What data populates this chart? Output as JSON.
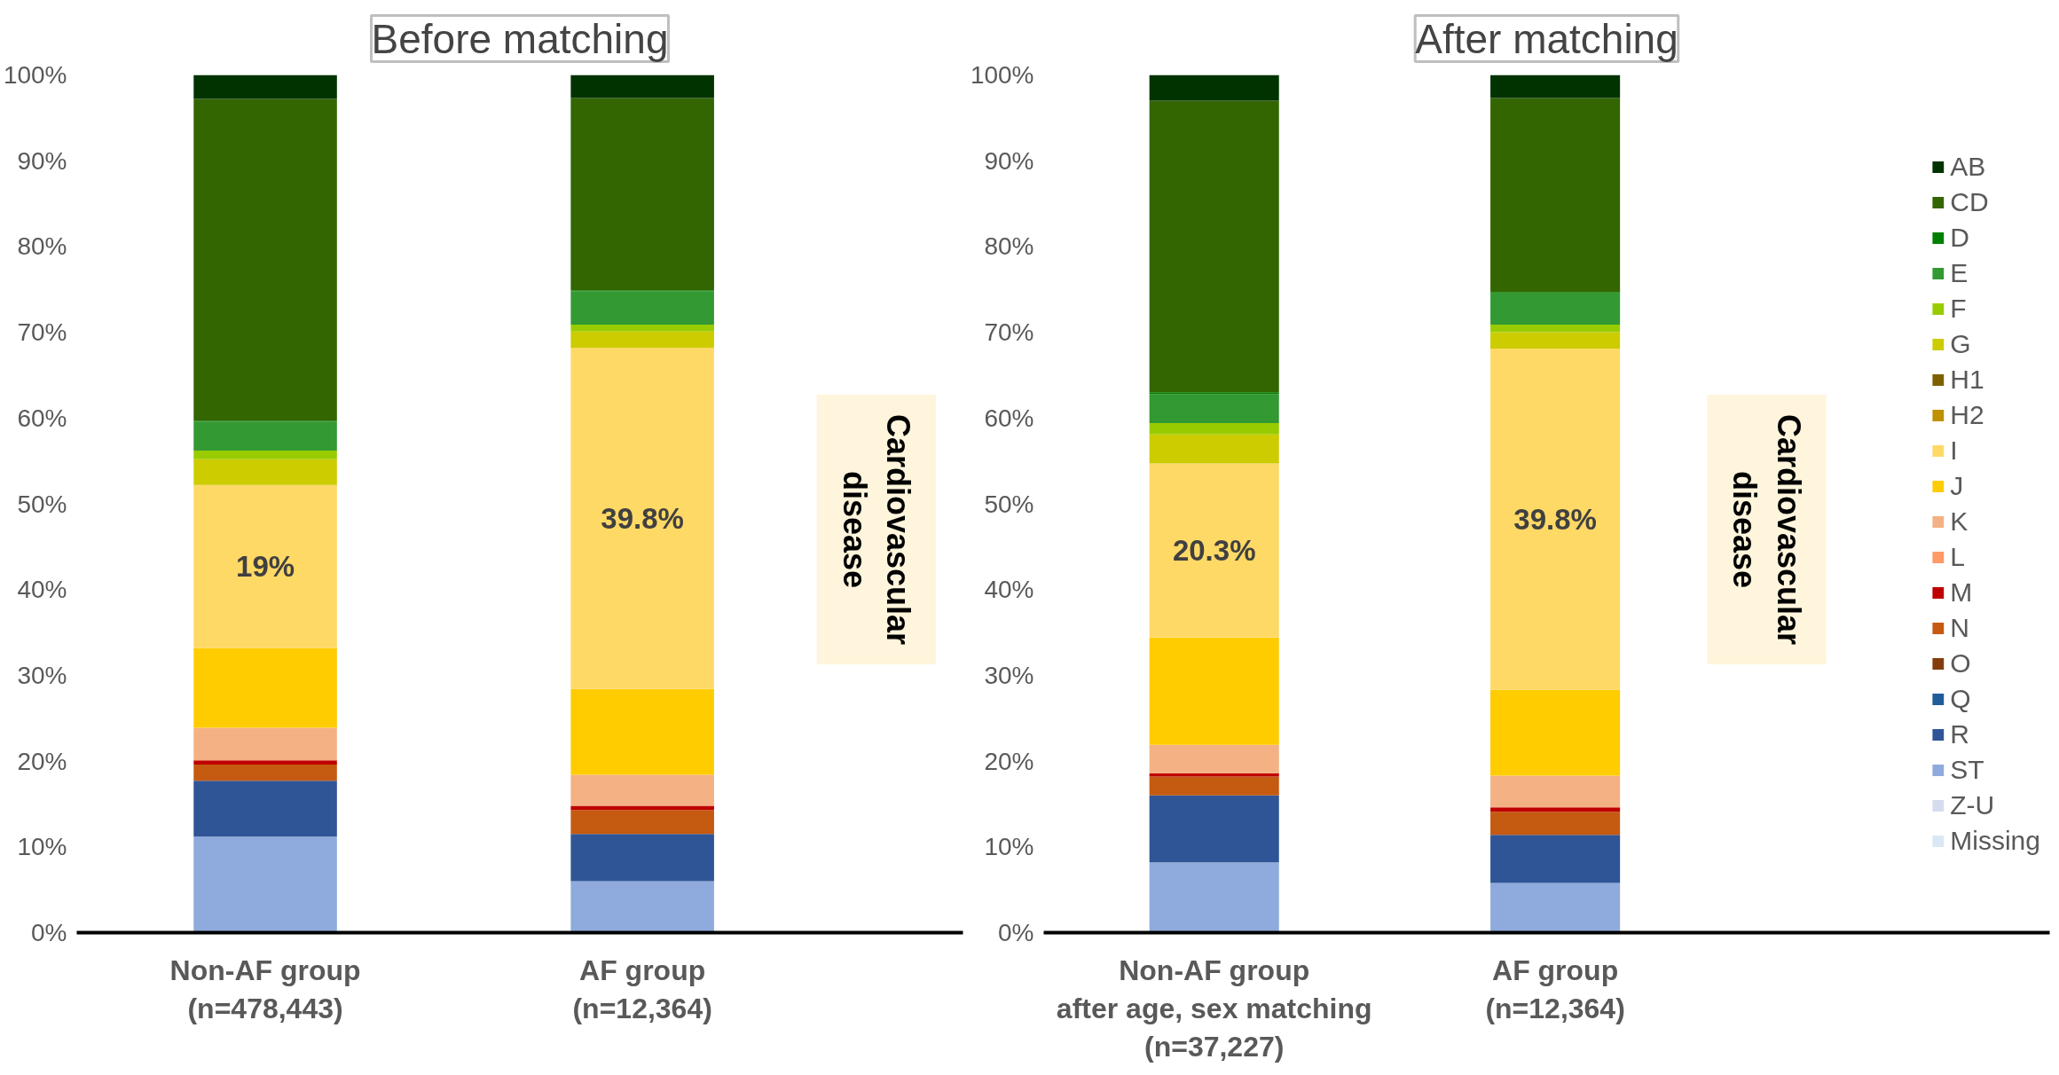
{
  "chart_data": [
    {
      "type": "bar",
      "title": "Before matching",
      "stacked": true,
      "categories": [
        "Non-AF group\n(n=478,443)",
        "AF group\n(n=12,364)"
      ],
      "ylim": [
        0,
        100
      ],
      "yticks": [
        {
          "value": 0,
          "label": "0%"
        },
        {
          "value": 10,
          "label": "10%"
        },
        {
          "value": 20,
          "label": "20%"
        },
        {
          "value": 30,
          "label": "30%"
        },
        {
          "value": 40,
          "label": "40%"
        },
        {
          "value": 50,
          "label": "50%"
        },
        {
          "value": 60,
          "label": "60%"
        },
        {
          "value": 70,
          "label": "70%"
        },
        {
          "value": 80,
          "label": "80%"
        },
        {
          "value": 90,
          "label": "90%"
        },
        {
          "value": 100,
          "label": "100%"
        }
      ],
      "grid": false,
      "annotations": [
        "Cardiovascular\ndisease"
      ],
      "series": [
        {
          "color": "#dae8f5",
          "values": [
            0,
            0
          ]
        },
        {
          "color": "#d6dcf0",
          "values": [
            0,
            0
          ]
        },
        {
          "color": "#8faadc",
          "values": [
            11.2,
            6.0
          ]
        },
        {
          "color": "#2f5597",
          "values": [
            6.5,
            5.5
          ]
        },
        {
          "color": "#1f5c99",
          "values": [
            0,
            0
          ]
        },
        {
          "color": "#843c0c",
          "values": [
            0,
            0
          ]
        },
        {
          "color": "#c55a11",
          "values": [
            1.9,
            2.8
          ]
        },
        {
          "color": "#c00000",
          "values": [
            0.5,
            0.5
          ]
        },
        {
          "color": "#ff9966",
          "values": [
            0,
            0
          ]
        },
        {
          "color": "#f4b183",
          "values": [
            3.8,
            3.6
          ]
        },
        {
          "color": "#ffcc00",
          "values": [
            9.3,
            10.0
          ]
        },
        {
          "color": "#ffd966",
          "values": [
            19,
            39.8
          ],
          "value_labels": [
            "19%",
            "39.8%"
          ]
        },
        {
          "color": "#bf9000",
          "values": [
            0,
            0
          ]
        },
        {
          "color": "#7f6000",
          "values": [
            0,
            0
          ]
        },
        {
          "color": "#cccc00",
          "values": [
            3.0,
            1.9
          ]
        },
        {
          "color": "#99cc00",
          "values": [
            1.0,
            0.8
          ]
        },
        {
          "color": "#339933",
          "values": [
            3.4,
            3.9
          ]
        },
        {
          "color": "#008000",
          "values": [
            0.1,
            0.1
          ]
        },
        {
          "color": "#336600",
          "values": [
            37.5,
            22.4
          ]
        },
        {
          "color": "#003300",
          "values": [
            2.8,
            2.8
          ]
        }
      ]
    },
    {
      "type": "bar",
      "title": "After matching",
      "stacked": true,
      "legend": "right",
      "categories": [
        "Non-AF group\nafter age, sex matching\n(n=37,227)",
        "AF group\n(n=12,364)"
      ],
      "ylim": [
        0,
        100
      ],
      "yticks": [
        {
          "value": 0,
          "label": "0%"
        },
        {
          "value": 10,
          "label": "10%"
        },
        {
          "value": 20,
          "label": "20%"
        },
        {
          "value": 30,
          "label": "30%"
        },
        {
          "value": 40,
          "label": "40%"
        },
        {
          "value": 50,
          "label": "50%"
        },
        {
          "value": 60,
          "label": "60%"
        },
        {
          "value": 70,
          "label": "70%"
        },
        {
          "value": 80,
          "label": "80%"
        },
        {
          "value": 90,
          "label": "90%"
        },
        {
          "value": 100,
          "label": "100%"
        }
      ],
      "grid": false,
      "annotations": [
        "Cardiovascular\ndisease"
      ],
      "series": [
        {
          "name": "Missing",
          "color": "#dae8f5",
          "values": [
            0,
            0
          ]
        },
        {
          "name": "Z-U",
          "color": "#d6dcf0",
          "values": [
            0,
            0
          ]
        },
        {
          "name": "ST",
          "color": "#8faadc",
          "values": [
            8.2,
            5.8
          ]
        },
        {
          "name": "R",
          "color": "#2f5597",
          "values": [
            7.8,
            5.6
          ]
        },
        {
          "name": "Q",
          "color": "#1f5c99",
          "values": [
            0,
            0
          ]
        },
        {
          "name": "O",
          "color": "#843c0c",
          "values": [
            0,
            0
          ]
        },
        {
          "name": "N",
          "color": "#c55a11",
          "values": [
            2.2,
            2.7
          ]
        },
        {
          "name": "M",
          "color": "#c00000",
          "values": [
            0.4,
            0.5
          ]
        },
        {
          "name": "L",
          "color": "#ff9966",
          "values": [
            0,
            0
          ]
        },
        {
          "name": "K",
          "color": "#f4b183",
          "values": [
            3.3,
            3.7
          ]
        },
        {
          "name": "J",
          "color": "#ffcc00",
          "values": [
            12.5,
            10.0
          ]
        },
        {
          "name": "I",
          "color": "#ffd966",
          "values": [
            20.3,
            39.8
          ],
          "value_labels": [
            "20.3%",
            "39.8%"
          ]
        },
        {
          "name": "H2",
          "color": "#bf9000",
          "values": [
            0,
            0
          ]
        },
        {
          "name": "H1",
          "color": "#7f6000",
          "values": [
            0,
            0
          ]
        },
        {
          "name": "G",
          "color": "#cccc00",
          "values": [
            3.4,
            1.9
          ]
        },
        {
          "name": "F",
          "color": "#99cc00",
          "values": [
            1.3,
            0.9
          ]
        },
        {
          "name": "E",
          "color": "#339933",
          "values": [
            3.4,
            3.7
          ]
        },
        {
          "name": "D",
          "color": "#008000",
          "values": [
            0.2,
            0.1
          ]
        },
        {
          "name": "CD",
          "color": "#336600",
          "values": [
            34.0,
            22.6
          ]
        },
        {
          "name": "AB",
          "color": "#003300",
          "values": [
            3.0,
            2.8
          ]
        }
      ]
    }
  ]
}
